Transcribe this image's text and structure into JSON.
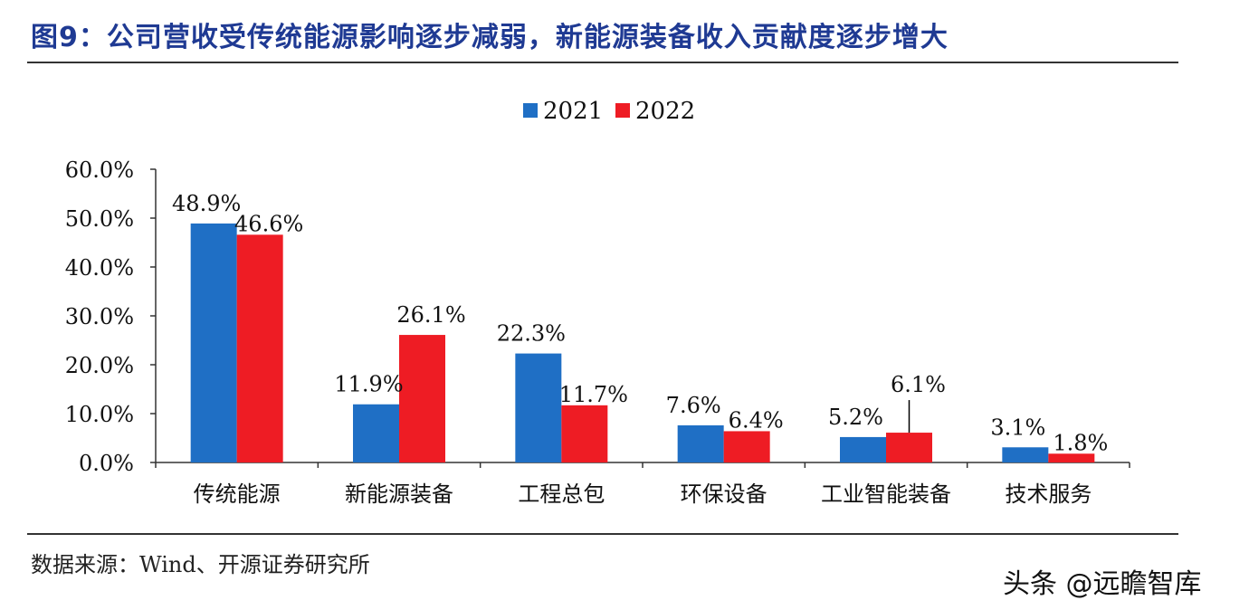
{
  "figure": {
    "title": "图9：公司营收受传统能源影响逐步减弱，新能源装备收入贡献度逐步增大",
    "source": "数据来源：Wind、开源证券研究所",
    "watermark": "头条 @远瞻智库"
  },
  "chart_data": {
    "type": "bar",
    "categories": [
      "传统能源",
      "新能源装备",
      "工程总包",
      "环保设备",
      "工业智能装备",
      "技术服务"
    ],
    "series": [
      {
        "name": "2021",
        "values": [
          48.9,
          11.9,
          22.3,
          7.6,
          5.2,
          3.1
        ],
        "labels": [
          "48.9%",
          "11.9%",
          "22.3%",
          "7.6%",
          "5.2%",
          "3.1%"
        ],
        "color": "#1f6fc5"
      },
      {
        "name": "2022",
        "values": [
          46.6,
          26.1,
          11.7,
          6.4,
          6.1,
          1.8
        ],
        "labels": [
          "46.6%",
          "26.1%",
          "11.7%",
          "6.4%",
          "6.1%",
          "1.8%"
        ],
        "color": "#ee1c24"
      }
    ],
    "ylim": [
      0,
      60
    ],
    "yticks": [
      "0.0%",
      "10.0%",
      "20.0%",
      "30.0%",
      "40.0%",
      "50.0%",
      "60.0%"
    ],
    "legend": "top-center",
    "grid": false
  }
}
